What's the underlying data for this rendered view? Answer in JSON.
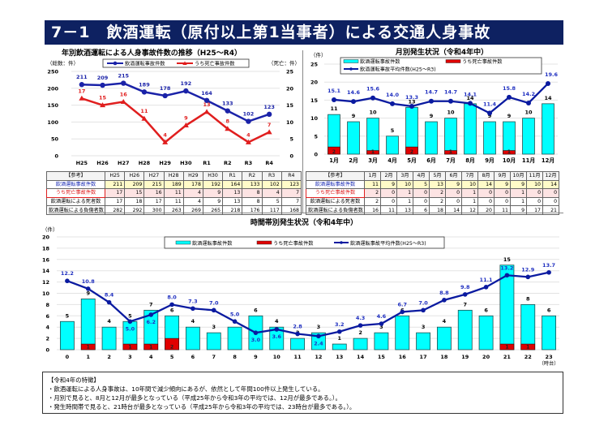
{
  "title": "7－1　飲酒運転（原付以上第1当事者）による交通人身事故",
  "colors": {
    "title_bg": "#0e2161",
    "total_line": "#1a22a8",
    "fatal_line": "#e01e1e",
    "bar_total": "#00ffff",
    "bar_fatal": "#e00000",
    "avg_line": "#0a1aa0",
    "avg_label": "#2030c0"
  },
  "chart_data": [
    {
      "type": "line",
      "title": "年別飲酒運転による人身事故件数の推移（H25～R4）",
      "ylabel_left": "（総数：件）",
      "ylabel_right": "（死亡：件）",
      "categories": [
        "H25",
        "H26",
        "H27",
        "H28",
        "H29",
        "H30",
        "R1",
        "R2",
        "R3",
        "R4"
      ],
      "ylim_left": [
        0,
        250
      ],
      "yticks_left": [
        0,
        50,
        100,
        150,
        200,
        250
      ],
      "ylim_right": [
        0,
        25
      ],
      "yticks_right": [
        0,
        5,
        10,
        15,
        20,
        25
      ],
      "legend": "top-center",
      "grid": true,
      "series": [
        {
          "name": "飲酒運転事故件数",
          "axis": "left",
          "values": [
            211,
            209,
            215,
            189,
            178,
            192,
            164,
            133,
            102,
            123
          ]
        },
        {
          "name": "うち死亡事故件数",
          "axis": "right",
          "values": [
            17,
            15,
            16,
            11,
            4,
            9,
            13,
            8,
            4,
            7
          ]
        }
      ]
    },
    {
      "type": "bar",
      "title": "月別発生状況（令和4年中）",
      "ylabel": "（件）",
      "categories": [
        "1月",
        "2月",
        "3月",
        "4月",
        "5月",
        "6月",
        "7月",
        "8月",
        "9月",
        "10月",
        "11月",
        "12月"
      ],
      "ylim": [
        0,
        25
      ],
      "yticks": [
        0,
        5,
        10,
        15,
        20,
        25
      ],
      "legend": "top",
      "grid": true,
      "series": [
        {
          "name": "飲酒運転事故件数",
          "kind": "bar",
          "values": [
            11,
            9,
            10,
            5,
            13,
            9,
            10,
            14,
            9,
            9,
            10,
            14
          ]
        },
        {
          "name": "うち死亡事故件数",
          "kind": "bar",
          "values": [
            2,
            0,
            1,
            0,
            2,
            0,
            1,
            0,
            0,
            1,
            0,
            0
          ]
        },
        {
          "name": "飲酒運転事故平均件数(H25～R3)",
          "kind": "line",
          "values": [
            15.1,
            14.6,
            15.6,
            14.0,
            13.3,
            14.7,
            14.7,
            14.1,
            11.4,
            15.8,
            14.2,
            19.6
          ]
        }
      ]
    },
    {
      "type": "bar",
      "title": "時間帯別発生状況（令和4年中）",
      "ylabel": "（件）",
      "xlabel": "（時台）",
      "categories": [
        "0",
        "1",
        "2",
        "3",
        "4",
        "5",
        "6",
        "7",
        "8",
        "9",
        "10",
        "11",
        "12",
        "13",
        "14",
        "15",
        "16",
        "17",
        "18",
        "19",
        "20",
        "21",
        "22",
        "23"
      ],
      "ylim": [
        0,
        20
      ],
      "yticks": [
        0,
        2,
        4,
        6,
        8,
        10,
        12,
        14,
        16,
        18,
        20
      ],
      "legend": "top-right",
      "grid": true,
      "series": [
        {
          "name": "飲酒運転事故件数",
          "kind": "bar",
          "values": [
            5,
            9,
            4,
            5,
            7,
            6,
            4,
            3,
            4,
            6,
            4,
            2,
            3,
            1,
            2,
            3,
            6,
            3,
            4,
            7,
            6,
            15,
            8,
            6
          ]
        },
        {
          "name": "うち死亡事故件数",
          "kind": "bar",
          "values": [
            0,
            1,
            0,
            1,
            1,
            2,
            0,
            0,
            0,
            0,
            0,
            0,
            0,
            0,
            0,
            0,
            0,
            0,
            0,
            0,
            0,
            1,
            1,
            0
          ]
        },
        {
          "name": "飲酒運転事故平均件数(H25～R3)",
          "kind": "line",
          "values": [
            12.2,
            10.8,
            8.4,
            5.0,
            6.2,
            8.0,
            7.3,
            7.0,
            5.0,
            3.0,
            3.6,
            2.8,
            2.4,
            3.2,
            4.3,
            4.6,
            6.7,
            7.0,
            8.8,
            9.8,
            11.1,
            13.2,
            12.9,
            13.7
          ]
        }
      ]
    }
  ],
  "yearly_table": {
    "corner": "【参考】",
    "headers": [
      "H25",
      "H26",
      "H27",
      "H28",
      "H29",
      "H30",
      "R1",
      "R2",
      "R3",
      "R4"
    ],
    "rows": [
      {
        "label": "飲酒運転事故件数",
        "values": [
          211,
          209,
          215,
          189,
          178,
          192,
          164,
          133,
          102,
          123
        ]
      },
      {
        "label": "うち死亡事故件数",
        "values": [
          17,
          15,
          16,
          11,
          4,
          9,
          13,
          8,
          4,
          7
        ]
      },
      {
        "label": "飲酒運転による死者数",
        "values": [
          17,
          18,
          17,
          11,
          4,
          9,
          13,
          8,
          5,
          7
        ]
      },
      {
        "label": "飲酒運転による負傷者数",
        "values": [
          282,
          292,
          300,
          263,
          269,
          265,
          218,
          176,
          117,
          168
        ]
      }
    ]
  },
  "monthly_table": {
    "corner": "【参考】",
    "headers": [
      "1月",
      "2月",
      "3月",
      "4月",
      "5月",
      "6月",
      "7月",
      "8月",
      "9月",
      "10月",
      "11月",
      "12月"
    ],
    "rows": [
      {
        "label": "飲酒運転事故件数",
        "values": [
          11,
          9,
          10,
          5,
          13,
          9,
          10,
          14,
          9,
          9,
          10,
          14
        ]
      },
      {
        "label": "うち死亡事故件数",
        "values": [
          2,
          0,
          1,
          0,
          2,
          0,
          1,
          0,
          0,
          1,
          0,
          0
        ]
      },
      {
        "label": "飲酒運転による死者数",
        "values": [
          2,
          0,
          1,
          0,
          2,
          0,
          1,
          0,
          0,
          1,
          0,
          0
        ]
      },
      {
        "label": "飲酒運転による負傷者数",
        "values": [
          16,
          11,
          13,
          6,
          18,
          14,
          12,
          20,
          11,
          9,
          17,
          21
        ]
      }
    ]
  },
  "notes": {
    "heading": "【令和4年の特徴】",
    "lines": [
      "・飲酒運転による人身事故は、10年間で減少傾向にあるが、依然として年間100件以上発生している。",
      "・月別で見ると、8月と12月が最多となっている（平成25年から令和3年の平均では、12月が最多である。）。",
      "・発生時間帯で見ると、21時台が最多となっている（平成25年から令和3年の平均では、23時台が最多である。）。"
    ]
  }
}
